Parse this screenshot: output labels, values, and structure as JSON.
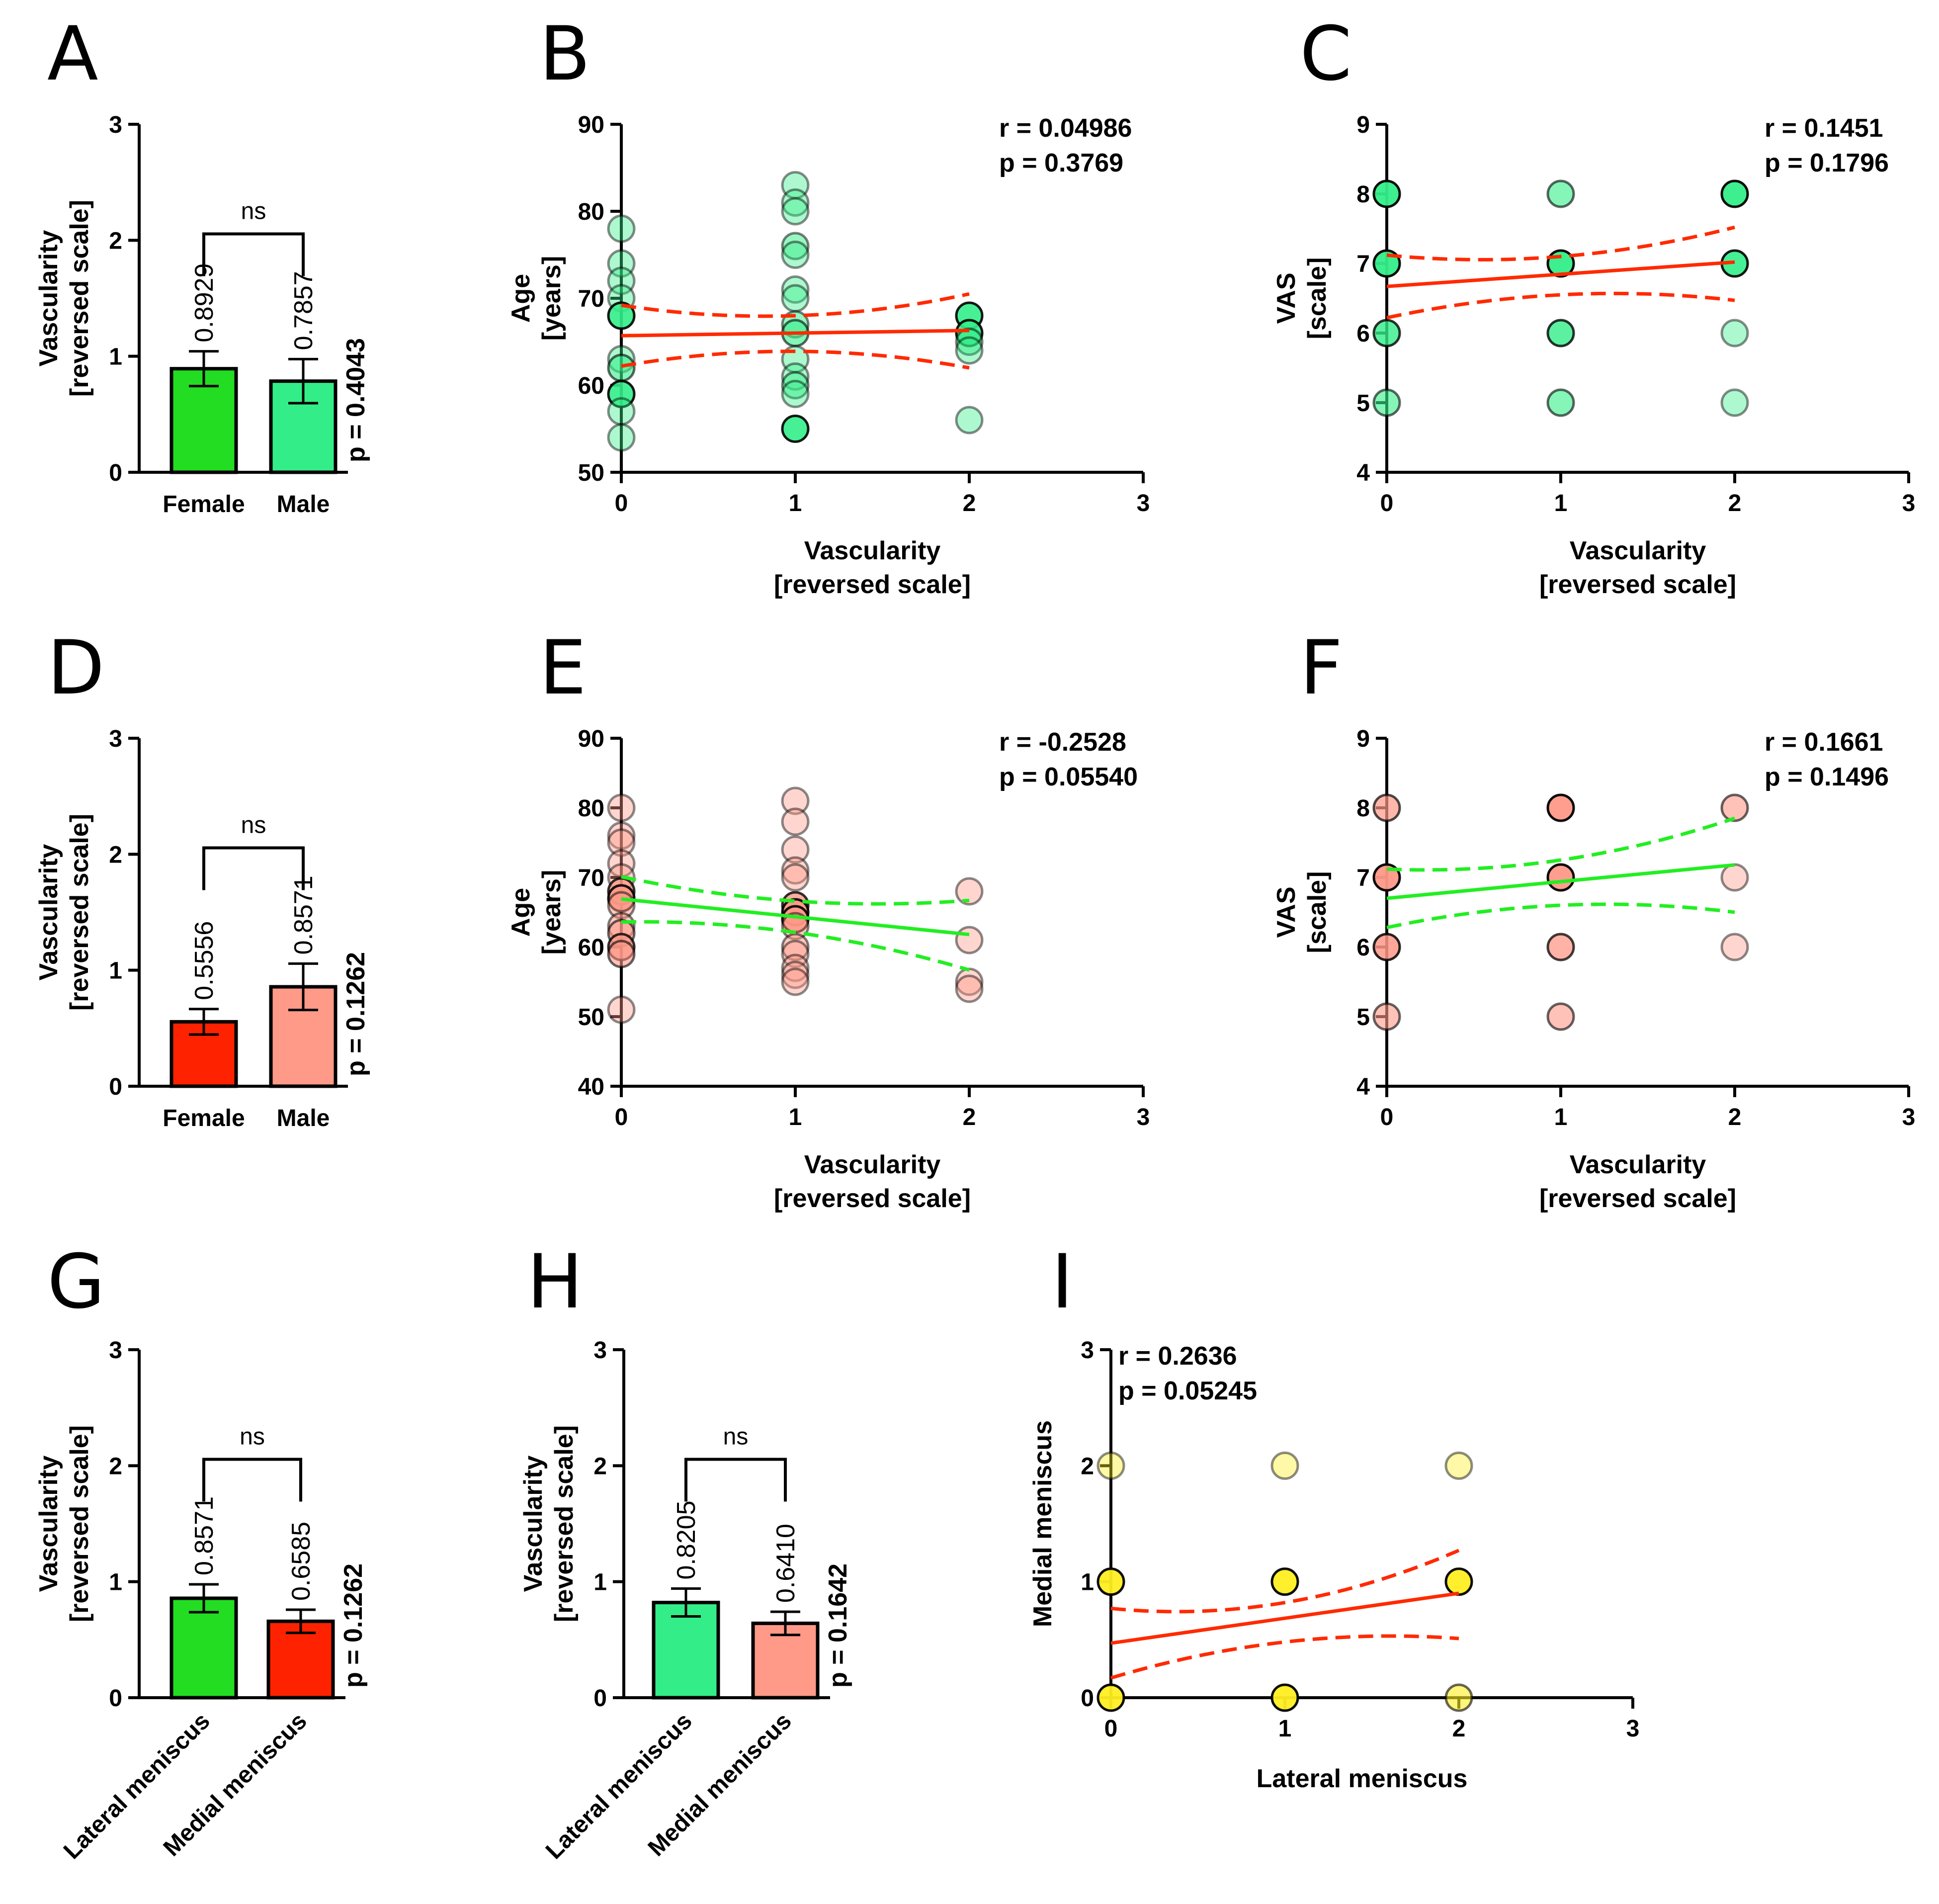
{
  "colors": {
    "green_dark": "#22dd22",
    "green_light": "#33ee88",
    "red_dark": "#ff2200",
    "red_light": "#ff9988",
    "yellow": "#ffee22",
    "fit_red": "#ff2a00",
    "fit_green": "#22ee22"
  },
  "chart_data": [
    {
      "id": "A",
      "type": "bar",
      "panel_label": "A",
      "ylabel": [
        "Vascularity",
        "[reversed scale]"
      ],
      "ylim": [
        0,
        3
      ],
      "yticks": [
        "0",
        "1",
        "2",
        "3"
      ],
      "categories": [
        "Female",
        "Male"
      ],
      "values": [
        0.8929,
        0.7857
      ],
      "errors": [
        0.15,
        0.19
      ],
      "value_labels": [
        "0.8929",
        "0.7857"
      ],
      "bar_colors": [
        "green_dark",
        "green_light"
      ],
      "significance": "ns",
      "p_label": "p = 0.4043"
    },
    {
      "id": "B",
      "type": "scatter",
      "panel_label": "B",
      "xlabel": [
        "Vascularity",
        "[reversed scale]"
      ],
      "ylabel": [
        "Age",
        "[years]"
      ],
      "xlim": [
        0,
        3
      ],
      "ylim": [
        50,
        90
      ],
      "xticks": [
        "0",
        "1",
        "2",
        "3"
      ],
      "yticks": [
        "50",
        "60",
        "70",
        "80",
        "90"
      ],
      "stats": [
        "r = 0.04986",
        "p = 0.3769"
      ],
      "point_color": "green_light",
      "fit_color": "fit_red",
      "fit": {
        "x0": 0,
        "y0": 65.7,
        "x1": 2,
        "y1": 66.3
      },
      "ci_upper": [
        [
          0,
          69.2
        ],
        [
          1,
          68.0
        ],
        [
          2,
          70.5
        ]
      ],
      "ci_lower": [
        [
          0,
          62.2
        ],
        [
          1,
          63.9
        ],
        [
          2,
          62.0
        ]
      ],
      "points": [
        [
          0,
          78,
          0.4
        ],
        [
          0,
          74,
          0.4
        ],
        [
          0,
          72,
          0.4
        ],
        [
          0,
          70,
          0.4
        ],
        [
          0,
          68,
          0.9
        ],
        [
          0,
          63,
          0.4
        ],
        [
          0,
          62,
          0.6
        ],
        [
          0,
          59,
          0.9
        ],
        [
          0,
          57,
          0.4
        ],
        [
          0,
          54,
          0.4
        ],
        [
          1,
          83,
          0.4
        ],
        [
          1,
          81,
          0.4
        ],
        [
          1,
          80,
          0.4
        ],
        [
          1,
          76,
          0.5
        ],
        [
          1,
          75,
          0.4
        ],
        [
          1,
          71,
          0.4
        ],
        [
          1,
          70,
          0.4
        ],
        [
          1,
          67,
          0.5
        ],
        [
          1,
          66,
          0.6
        ],
        [
          1,
          63,
          0.4
        ],
        [
          1,
          61,
          0.4
        ],
        [
          1,
          60,
          0.5
        ],
        [
          1,
          59,
          0.4
        ],
        [
          1,
          55,
          0.9
        ],
        [
          2,
          68,
          0.9
        ],
        [
          2,
          66,
          0.9
        ],
        [
          2,
          65,
          0.5
        ],
        [
          2,
          64,
          0.4
        ],
        [
          2,
          56,
          0.4
        ]
      ]
    },
    {
      "id": "C",
      "type": "scatter",
      "panel_label": "C",
      "xlabel": [
        "Vascularity",
        "[reversed scale]"
      ],
      "ylabel": [
        "VAS",
        "[scale]"
      ],
      "xlim": [
        0,
        3
      ],
      "ylim": [
        4,
        9
      ],
      "xticks": [
        "0",
        "1",
        "2",
        "3"
      ],
      "yticks": [
        "4",
        "5",
        "6",
        "7",
        "8",
        "9"
      ],
      "stats": [
        "r = 0.1451",
        "p = 0.1796"
      ],
      "point_color": "green_light",
      "fit_color": "fit_red",
      "fit": {
        "x0": 0,
        "y0": 6.67,
        "x1": 2,
        "y1": 7.02
      },
      "ci_upper": [
        [
          0,
          7.12
        ],
        [
          1,
          7.1
        ],
        [
          2,
          7.52
        ]
      ],
      "ci_lower": [
        [
          0,
          6.22
        ],
        [
          1,
          6.55
        ],
        [
          2,
          6.47
        ]
      ],
      "points": [
        [
          0,
          8,
          0.95
        ],
        [
          0,
          7,
          0.95
        ],
        [
          0,
          6,
          0.8
        ],
        [
          0,
          5,
          0.6
        ],
        [
          1,
          8,
          0.6
        ],
        [
          1,
          7,
          0.95
        ],
        [
          1,
          6,
          0.8
        ],
        [
          1,
          5,
          0.6
        ],
        [
          2,
          8,
          0.95
        ],
        [
          2,
          7,
          0.9
        ],
        [
          2,
          6,
          0.4
        ],
        [
          2,
          5,
          0.4
        ]
      ]
    },
    {
      "id": "D",
      "type": "bar",
      "panel_label": "D",
      "ylabel": [
        "Vascularity",
        "[reversed scale]"
      ],
      "ylim": [
        0,
        3
      ],
      "yticks": [
        "0",
        "1",
        "2",
        "3"
      ],
      "categories": [
        "Female",
        "Male"
      ],
      "values": [
        0.5556,
        0.8571
      ],
      "errors": [
        0.11,
        0.2
      ],
      "value_labels": [
        "0.5556",
        "0.8571"
      ],
      "bar_colors": [
        "red_dark",
        "red_light"
      ],
      "significance": "ns",
      "p_label": "p = 0.1262"
    },
    {
      "id": "E",
      "type": "scatter",
      "panel_label": "E",
      "xlabel": [
        "Vascularity",
        "[reversed scale]"
      ],
      "ylabel": [
        "Age",
        "[years]"
      ],
      "xlim": [
        0,
        3
      ],
      "ylim": [
        40,
        90
      ],
      "xticks": [
        "0",
        "1",
        "2",
        "3"
      ],
      "yticks": [
        "40",
        "50",
        "60",
        "70",
        "80",
        "90"
      ],
      "stats": [
        "r = -0.2528",
        "p = 0.05540"
      ],
      "point_color": "red_light",
      "fit_color": "fit_green",
      "fit": {
        "x0": 0,
        "y0": 66.9,
        "x1": 2,
        "y1": 61.8
      },
      "ci_upper": [
        [
          0,
          70.1
        ],
        [
          1,
          66.6
        ],
        [
          2,
          66.7
        ]
      ],
      "ci_lower": [
        [
          0,
          63.6
        ],
        [
          1,
          62.1
        ],
        [
          2,
          56.7
        ]
      ],
      "points": [
        [
          0,
          80,
          0.4
        ],
        [
          0,
          76,
          0.4
        ],
        [
          0,
          75,
          0.4
        ],
        [
          0,
          72,
          0.4
        ],
        [
          0,
          70,
          0.4
        ],
        [
          0,
          68,
          0.8
        ],
        [
          0,
          67,
          0.9
        ],
        [
          0,
          66,
          0.5
        ],
        [
          0,
          63,
          0.5
        ],
        [
          0,
          62,
          0.6
        ],
        [
          0,
          60,
          0.8
        ],
        [
          0,
          59,
          0.6
        ],
        [
          0,
          51,
          0.4
        ],
        [
          1,
          81,
          0.4
        ],
        [
          1,
          78,
          0.4
        ],
        [
          1,
          74,
          0.4
        ],
        [
          1,
          71,
          0.4
        ],
        [
          1,
          70,
          0.4
        ],
        [
          1,
          66,
          0.8
        ],
        [
          1,
          65,
          0.9
        ],
        [
          1,
          64,
          0.9
        ],
        [
          1,
          63,
          0.5
        ],
        [
          1,
          60,
          0.5
        ],
        [
          1,
          59,
          0.4
        ],
        [
          1,
          57,
          0.4
        ],
        [
          1,
          56,
          0.4
        ],
        [
          1,
          55,
          0.4
        ],
        [
          2,
          68,
          0.4
        ],
        [
          2,
          61,
          0.4
        ],
        [
          2,
          55,
          0.4
        ],
        [
          2,
          54,
          0.4
        ]
      ]
    },
    {
      "id": "F",
      "type": "scatter",
      "panel_label": "F",
      "xlabel": [
        "Vascularity",
        "[reversed scale]"
      ],
      "ylabel": [
        "VAS",
        "[scale]"
      ],
      "xlim": [
        0,
        3
      ],
      "ylim": [
        4,
        9
      ],
      "xticks": [
        "0",
        "1",
        "2",
        "3"
      ],
      "yticks": [
        "4",
        "5",
        "6",
        "7",
        "8",
        "9"
      ],
      "stats": [
        "r = 0.1661",
        "p = 0.1496"
      ],
      "point_color": "red_light",
      "fit_color": "fit_green",
      "fit": {
        "x0": 0,
        "y0": 6.7,
        "x1": 2,
        "y1": 7.18
      },
      "ci_upper": [
        [
          0,
          7.12
        ],
        [
          1,
          7.25
        ],
        [
          2,
          7.85
        ]
      ],
      "ci_lower": [
        [
          0,
          6.28
        ],
        [
          1,
          6.6
        ],
        [
          2,
          6.5
        ]
      ],
      "points": [
        [
          0,
          8,
          0.7
        ],
        [
          0,
          7,
          0.95
        ],
        [
          0,
          6,
          0.85
        ],
        [
          0,
          5,
          0.6
        ],
        [
          1,
          8,
          0.95
        ],
        [
          1,
          7,
          0.95
        ],
        [
          1,
          6,
          0.75
        ],
        [
          1,
          5,
          0.6
        ],
        [
          2,
          8,
          0.6
        ],
        [
          2,
          7,
          0.4
        ],
        [
          2,
          6,
          0.4
        ]
      ]
    },
    {
      "id": "G",
      "type": "bar",
      "panel_label": "G",
      "ylabel": [
        "Vascularity",
        "[reversed scale]"
      ],
      "ylim": [
        0,
        3
      ],
      "yticks": [
        "0",
        "1",
        "2",
        "3"
      ],
      "categories": [
        "Lateral meniscus",
        "Medial meniscus"
      ],
      "values": [
        0.8571,
        0.6585
      ],
      "errors": [
        0.12,
        0.1
      ],
      "value_labels": [
        "0.8571",
        "0.6585"
      ],
      "bar_colors": [
        "green_dark",
        "red_dark"
      ],
      "significance": "ns",
      "p_label": "p = 0.1262"
    },
    {
      "id": "H",
      "type": "bar",
      "panel_label": "H",
      "ylabel": [
        "Vascularity",
        "[reversed scale]"
      ],
      "ylim": [
        0,
        3
      ],
      "yticks": [
        "0",
        "1",
        "2",
        "3"
      ],
      "categories": [
        "Lateral meniscus",
        "Medial meniscus"
      ],
      "values": [
        0.8205,
        0.641
      ],
      "errors": [
        0.12,
        0.1
      ],
      "value_labels": [
        "0.8205",
        "0.6410"
      ],
      "bar_colors": [
        "green_light",
        "red_light"
      ],
      "significance": "ns",
      "p_label": "p = 0.1642"
    },
    {
      "id": "I",
      "type": "scatter",
      "panel_label": "I",
      "xlabel": [
        "Lateral meniscus"
      ],
      "ylabel": [
        "Medial meniscus"
      ],
      "xlim": [
        0,
        3
      ],
      "ylim": [
        0,
        3
      ],
      "xticks": [
        "0",
        "1",
        "2",
        "3"
      ],
      "yticks": [
        "0",
        "1",
        "2",
        "3"
      ],
      "stats": [
        "r = 0.2636",
        "p = 0.05245"
      ],
      "point_color": "yellow",
      "fit_color": "fit_red",
      "fit": {
        "x0": 0,
        "y0": 0.47,
        "x1": 2,
        "y1": 0.9
      },
      "ci_upper": [
        [
          0,
          0.77
        ],
        [
          1,
          0.82
        ],
        [
          2,
          1.27
        ]
      ],
      "ci_lower": [
        [
          0,
          0.17
        ],
        [
          1,
          0.48
        ],
        [
          2,
          0.51
        ]
      ],
      "points": [
        [
          0,
          2,
          0.4
        ],
        [
          0,
          1,
          0.95
        ],
        [
          0,
          0,
          0.95
        ],
        [
          1,
          2,
          0.4
        ],
        [
          1,
          1,
          0.95
        ],
        [
          1,
          0,
          0.95
        ],
        [
          2,
          2,
          0.4
        ],
        [
          2,
          1,
          0.95
        ],
        [
          2,
          0,
          0.6
        ]
      ]
    }
  ]
}
